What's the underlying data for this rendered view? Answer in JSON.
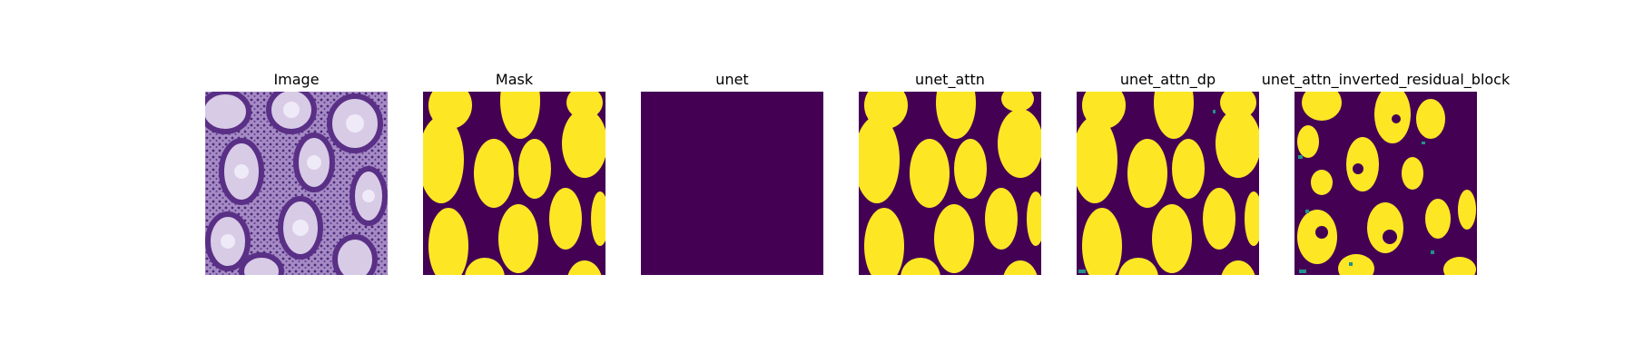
{
  "panels": [
    {
      "title": "Image"
    },
    {
      "title": "Mask"
    },
    {
      "title": "unet"
    },
    {
      "title": "unet_attn"
    },
    {
      "title": "unet_attn_dp"
    },
    {
      "title": "unet_attn_inverted_residual_block"
    }
  ],
  "colors": {
    "background": "#440154",
    "foreground": "#fde725",
    "edge": "#21918c",
    "tissue_light": "#c9b8dc",
    "tissue_dark": "#6a3d9a"
  }
}
